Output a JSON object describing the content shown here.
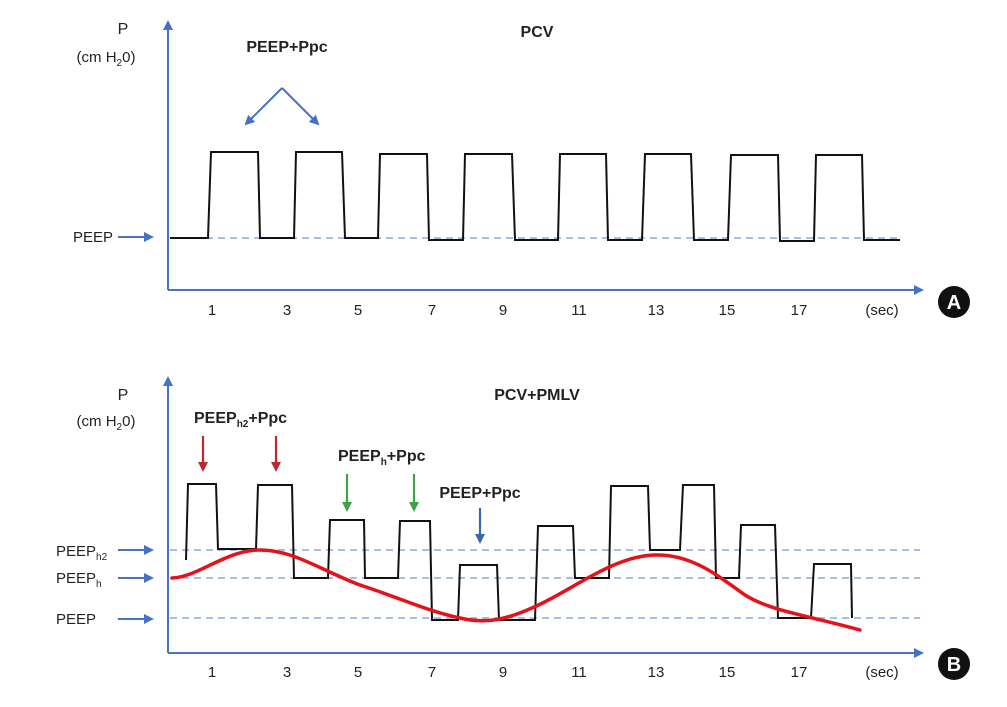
{
  "colors": {
    "axis": "#4472c4",
    "signal": "#111111",
    "baseline_dash": "#8ea9db",
    "red_curve": "#e3121b",
    "red_arrow": "#c0272d",
    "green_arrow": "#3fa24a",
    "blue_arrow": "#3d66b0",
    "badge": "#111111"
  },
  "panel_a": {
    "badge": "A",
    "title": "PCV",
    "y_label_p": "P",
    "y_unit_prefix": "(cm H",
    "y_unit_sub": "2",
    "y_unit_suffix": "0)",
    "peep_label": "PEEP",
    "annotation": "PEEP+Ppc",
    "x_ticks": [
      "1",
      "3",
      "5",
      "7",
      "9",
      "11",
      "13",
      "15",
      "17"
    ],
    "x_unit": "(sec)"
  },
  "panel_b": {
    "badge": "B",
    "title": "PCV+PMLV",
    "y_label_p": "P",
    "y_unit_prefix": "(cm H",
    "y_unit_sub": "2",
    "y_unit_suffix": "0)",
    "levels": [
      {
        "base": "PEEP",
        "sub": "h2"
      },
      {
        "base": "PEEP",
        "sub": "h"
      },
      {
        "base": "PEEP",
        "sub": ""
      }
    ],
    "annotations": {
      "h2": {
        "base": "PEEP",
        "sub": "h2",
        "suffix": "+Ppc"
      },
      "h": {
        "base": "PEEP",
        "sub": "h",
        "suffix": "+Ppc"
      },
      "base": {
        "text": "PEEP+Ppc"
      }
    },
    "x_ticks": [
      "1",
      "3",
      "5",
      "7",
      "9",
      "11",
      "13",
      "15",
      "17"
    ],
    "x_unit": "(sec)"
  }
}
